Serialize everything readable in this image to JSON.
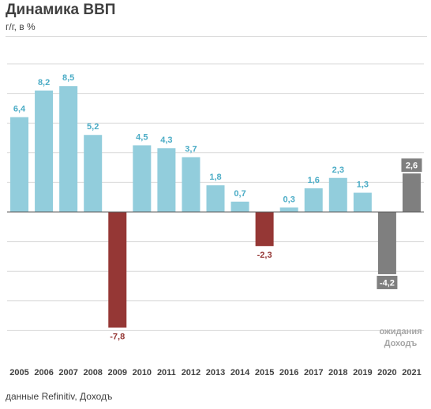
{
  "header": {
    "title": "Динамика ВВП",
    "subtitle": "г/г, в %"
  },
  "footer": {
    "source": "данные Refinitiv, Доходъ"
  },
  "colors": {
    "positive": "#92cddc",
    "negative": "#953735",
    "actual_2020": "#7f7f7f",
    "forecast": "#7f7f7f",
    "grid": "#d9d9d9",
    "axis": "#595959"
  },
  "chart_data": {
    "type": "bar",
    "title": "Динамика ВВП",
    "subtitle": "г/г, в %",
    "categories": [
      "2005",
      "2006",
      "2007",
      "2008",
      "2009",
      "2010",
      "2011",
      "2012",
      "2013",
      "2014",
      "2015",
      "2016",
      "2017",
      "2018",
      "2019",
      "2020",
      "2021"
    ],
    "values": [
      6.4,
      8.2,
      8.5,
      5.2,
      -7.8,
      4.5,
      4.3,
      3.7,
      1.8,
      0.7,
      -2.3,
      0.3,
      1.6,
      2.3,
      1.3,
      -4.2,
      2.6
    ],
    "labels": [
      "6,4",
      "8,2",
      "8,5",
      "5,2",
      "-7,8",
      "4,5",
      "4,3",
      "3,7",
      "1,8",
      "0,7",
      "-2,3",
      "0,3",
      "1,6",
      "2,3",
      "1,3",
      "-4,2",
      "2,6"
    ],
    "ylim": [
      -9,
      10
    ],
    "grid": true,
    "forecast_note": [
      "ожидания",
      "Доходъ"
    ],
    "gray_categories": [
      "2020",
      "2021"
    ]
  }
}
